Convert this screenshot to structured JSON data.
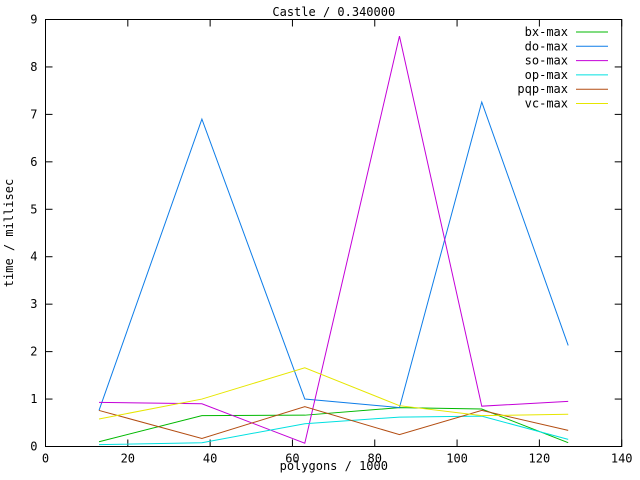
{
  "window": {
    "title": "Castle / 0.340000"
  },
  "chart_data": {
    "type": "line",
    "title": "Castle / 0.340000",
    "xlabel": "polygons / 1000",
    "ylabel": "time / millisec",
    "xlim": [
      0,
      140
    ],
    "ylim": [
      0,
      9
    ],
    "xticks": [
      0,
      20,
      40,
      60,
      80,
      100,
      120,
      140
    ],
    "yticks": [
      0,
      1,
      2,
      3,
      4,
      5,
      6,
      7,
      8,
      9
    ],
    "grid": false,
    "legend_position": "top-right-inside",
    "background_color": "#ffffff",
    "axis_color": "#000000",
    "x": [
      13,
      38,
      63,
      86,
      106,
      127
    ],
    "series": [
      {
        "name": "bx-max",
        "color": "#00b800",
        "values": [
          0.1,
          0.65,
          0.66,
          0.82,
          0.79,
          0.08
        ]
      },
      {
        "name": "do-max",
        "color": "#0e7de8",
        "values": [
          0.76,
          6.9,
          1.0,
          0.82,
          7.26,
          2.13
        ]
      },
      {
        "name": "so-max",
        "color": "#c400d8",
        "values": [
          0.93,
          0.9,
          0.07,
          8.65,
          0.85,
          0.95
        ]
      },
      {
        "name": "op-max",
        "color": "#00e0e0",
        "values": [
          0.04,
          0.08,
          0.48,
          0.62,
          0.64,
          0.15
        ]
      },
      {
        "name": "pqp-max",
        "color": "#b34d12",
        "values": [
          0.76,
          0.17,
          0.84,
          0.25,
          0.76,
          0.34
        ]
      },
      {
        "name": "vc-max",
        "color": "#e6e600",
        "values": [
          0.58,
          1.0,
          1.66,
          0.86,
          0.65,
          0.68
        ]
      }
    ]
  }
}
